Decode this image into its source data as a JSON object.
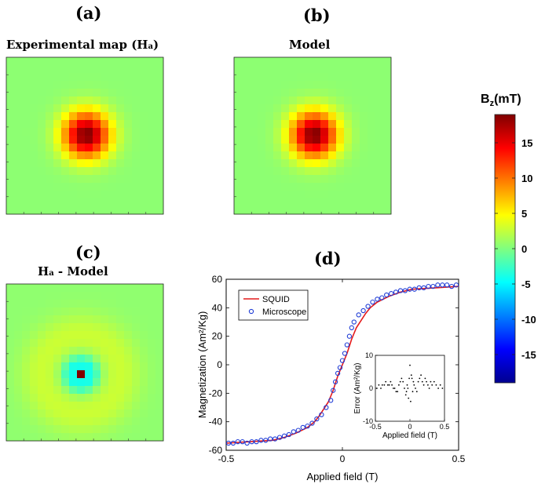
{
  "panels": {
    "a": {
      "letter": "(a)",
      "title": "Experimental map (H",
      "title_sub": "a",
      "title_end": ")"
    },
    "b": {
      "letter": "(b)",
      "title": "Model"
    },
    "c": {
      "letter": "(c)",
      "title_main": "H",
      "title_sub": "a",
      "title_rest": " - Model"
    },
    "d": {
      "letter": "(d)"
    }
  },
  "colorbar": {
    "label_main": "B",
    "label_sub": "z",
    "label_rest": "(mT)",
    "range": [
      -19,
      19
    ],
    "ticks": [
      15,
      10,
      5,
      0,
      -5,
      -10,
      -15
    ],
    "tick_labels": [
      "15",
      "10",
      "5",
      "0",
      "-5",
      "-10",
      "-15"
    ],
    "colormap": "jet"
  },
  "chart_data": [
    {
      "type": "heatmap",
      "panel": "a",
      "title": "Experimental map (Ha)",
      "grid": 20,
      "peak_mT": 19,
      "background_mT": 0.5,
      "sigma_cells": 2.1,
      "colormap": "jet",
      "range": [
        -19,
        19
      ]
    },
    {
      "type": "heatmap",
      "panel": "b",
      "title": "Model",
      "grid": 20,
      "peak_mT": 19,
      "background_mT": 0.5,
      "sigma_cells": 2.1,
      "colormap": "jet",
      "range": [
        -19,
        19
      ]
    },
    {
      "type": "heatmap",
      "panel": "c",
      "title": "Ha - Model",
      "grid": 20,
      "residual_peak_mT": 19,
      "residual_ring_mT": -5,
      "colormap": "jet",
      "range": [
        -19,
        19
      ]
    },
    {
      "type": "line",
      "panel": "d",
      "xlabel": "Applied field (T)",
      "ylabel": "Magnetization (Am²/Kg)",
      "xlim": [
        -0.5,
        0.5
      ],
      "ylim": [
        -60,
        60
      ],
      "xticks": [
        -0.5,
        0,
        0.5
      ],
      "xtick_labels": [
        "-0.5",
        "0",
        "0.5"
      ],
      "yticks": [
        60,
        40,
        20,
        0,
        -20,
        -40,
        -60
      ],
      "ytick_labels": [
        "60",
        "40",
        "20",
        "0",
        "-20",
        "-40",
        "-60"
      ],
      "legend_position": "top-left",
      "series": [
        {
          "name": "SQUID",
          "style": "line",
          "color": "#e41a1c",
          "x": [
            -0.5,
            -0.4,
            -0.3,
            -0.25,
            -0.2,
            -0.15,
            -0.12,
            -0.1,
            -0.08,
            -0.06,
            -0.05,
            -0.04,
            -0.03,
            -0.02,
            -0.01,
            0,
            0.01,
            0.02,
            0.03,
            0.04,
            0.05,
            0.06,
            0.08,
            0.1,
            0.12,
            0.15,
            0.2,
            0.25,
            0.3,
            0.4,
            0.5
          ],
          "y": [
            -55,
            -54,
            -53,
            -51,
            -48,
            -44,
            -40,
            -36,
            -31,
            -26,
            -22,
            -18,
            -13,
            -8,
            -4,
            0,
            4,
            8,
            13,
            18,
            22,
            26,
            31,
            36,
            40,
            44,
            48,
            51,
            53,
            54,
            55
          ]
        },
        {
          "name": "Microscope",
          "style": "markers",
          "color": "#1f3cd6",
          "x": [
            -0.49,
            -0.47,
            -0.45,
            -0.43,
            -0.41,
            -0.39,
            -0.37,
            -0.35,
            -0.33,
            -0.31,
            -0.29,
            -0.27,
            -0.25,
            -0.23,
            -0.21,
            -0.19,
            -0.17,
            -0.15,
            -0.13,
            -0.11,
            -0.09,
            -0.07,
            -0.05,
            -0.04,
            -0.03,
            -0.02,
            -0.01,
            0.0,
            0.01,
            0.02,
            0.03,
            0.04,
            0.05,
            0.07,
            0.09,
            0.11,
            0.13,
            0.15,
            0.17,
            0.19,
            0.21,
            0.23,
            0.25,
            0.27,
            0.29,
            0.31,
            0.33,
            0.35,
            0.37,
            0.39,
            0.41,
            0.43,
            0.45,
            0.47,
            0.49
          ],
          "y": [
            -55,
            -55,
            -54,
            -54,
            -55,
            -54,
            -54,
            -53,
            -53,
            -52,
            -52,
            -51,
            -50,
            -49,
            -47,
            -46,
            -44,
            -43,
            -41,
            -38,
            -35,
            -30,
            -25,
            -18,
            -12,
            -6,
            -2,
            3,
            8,
            14,
            20,
            26,
            30,
            35,
            38,
            41,
            44,
            46,
            47,
            49,
            50,
            51,
            52,
            52,
            53,
            53,
            54,
            54,
            55,
            55,
            56,
            56,
            56,
            55,
            56
          ]
        }
      ],
      "inset": {
        "type": "scatter",
        "xlabel": "Applied field (T)",
        "ylabel": "Error (Am²/Kg)",
        "xlim": [
          -0.5,
          0.5
        ],
        "ylim": [
          -10,
          10
        ],
        "xticks": [
          -0.5,
          0,
          0.5
        ],
        "xtick_labels": [
          "-0.5",
          "0",
          "0.5"
        ],
        "yticks": [
          10,
          0,
          -10
        ],
        "ytick_labels": [
          "10",
          "0",
          "-10"
        ],
        "x": [
          -0.48,
          -0.45,
          -0.42,
          -0.4,
          -0.37,
          -0.35,
          -0.32,
          -0.3,
          -0.28,
          -0.26,
          -0.24,
          -0.22,
          -0.2,
          -0.18,
          -0.16,
          -0.14,
          -0.12,
          -0.1,
          -0.08,
          -0.06,
          -0.05,
          -0.04,
          -0.03,
          -0.02,
          -0.01,
          0.0,
          0.01,
          0.02,
          0.03,
          0.04,
          0.05,
          0.06,
          0.08,
          0.1,
          0.12,
          0.14,
          0.16,
          0.18,
          0.2,
          0.22,
          0.24,
          0.26,
          0.28,
          0.3,
          0.32,
          0.35,
          0.38,
          0.41,
          0.44,
          0.47
        ],
        "y": [
          0,
          1,
          0,
          1,
          1,
          2,
          1,
          1,
          2,
          1,
          0,
          0,
          -1,
          -1,
          1,
          2,
          3,
          2,
          0,
          -2,
          -1,
          1,
          0,
          -3,
          3,
          7,
          -4,
          4,
          3,
          -1,
          2,
          1,
          0,
          -1,
          2,
          3,
          4,
          2,
          1,
          3,
          2,
          1,
          0,
          2,
          1,
          2,
          1,
          0,
          1,
          0
        ]
      }
    }
  ]
}
